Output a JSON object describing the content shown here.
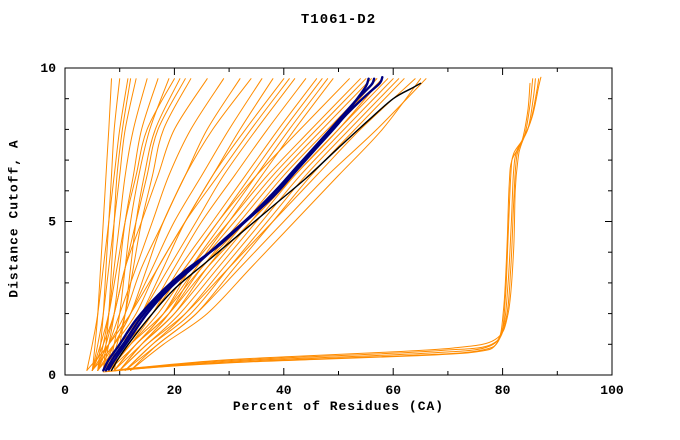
{
  "chart_data": {
    "type": "line",
    "title": "T1061-D2",
    "xlabel": "Percent of Residues (CA)",
    "ylabel": "Distance Cutoff, A",
    "xlim": [
      0,
      100
    ],
    "ylim": [
      0,
      10
    ],
    "xticks_major": [
      0,
      20,
      40,
      60,
      80,
      100
    ],
    "xtick_minor_step": 10,
    "yticks_major": [
      0,
      5,
      10
    ],
    "ytick_minor_step": 1,
    "legend": "none",
    "grid": false,
    "styles": {
      "model": {
        "color": "#ff8c00",
        "width": 1
      },
      "reference": {
        "color": "#000080",
        "width": 2.4
      },
      "baseline": {
        "color": "#000000",
        "width": 1.4
      },
      "axis_color": "#000000",
      "background": "#ffffff"
    },
    "model_ylevels": [
      0.15,
      1,
      2,
      3.5,
      5,
      6.5,
      8,
      9.65
    ],
    "model_curves_x": [
      [
        5,
        5.5,
        6,
        6.5,
        7,
        7.5,
        8,
        8.5
      ],
      [
        6,
        6.5,
        7,
        7.5,
        8,
        8.5,
        9,
        10
      ],
      [
        7,
        7.5,
        8,
        8.5,
        9,
        9.5,
        10.5,
        12
      ],
      [
        5,
        6,
        7,
        8,
        9,
        10,
        11,
        13
      ],
      [
        6,
        7,
        8,
        9,
        10,
        11,
        12.5,
        15
      ],
      [
        7,
        8,
        9,
        10,
        11,
        12.5,
        14,
        17
      ],
      [
        8,
        9,
        10,
        11,
        12,
        13.5,
        15.5,
        19
      ],
      [
        5,
        6.5,
        8,
        9.5,
        11,
        13,
        15,
        20
      ],
      [
        6,
        7.5,
        9,
        11,
        13,
        15,
        17,
        22
      ],
      [
        9,
        10,
        11,
        12,
        13,
        14.5,
        16.5,
        21
      ],
      [
        4,
        5,
        6,
        7,
        8,
        9,
        10,
        11.5
      ],
      [
        8,
        9.5,
        11,
        12.5,
        14,
        16,
        18,
        23
      ],
      [
        5,
        7,
        9,
        11,
        14,
        17,
        20,
        26
      ],
      [
        6,
        8,
        10,
        13,
        16,
        19,
        23,
        29
      ],
      [
        7,
        9,
        12,
        15,
        18,
        22,
        26,
        32
      ],
      [
        5,
        8,
        11,
        14,
        18,
        22,
        27,
        34
      ],
      [
        6,
        9,
        12,
        16,
        20,
        25,
        30,
        36
      ],
      [
        8,
        11,
        14,
        18,
        22,
        27,
        32,
        38
      ],
      [
        5,
        9,
        13,
        17,
        22,
        27,
        33,
        40
      ],
      [
        7,
        10,
        14,
        19,
        24,
        29,
        35,
        42
      ],
      [
        6,
        10,
        15,
        20,
        25,
        31,
        37,
        44
      ],
      [
        8,
        12,
        16,
        21,
        27,
        33,
        39,
        46
      ],
      [
        9,
        13,
        18,
        23,
        29,
        35,
        41,
        48
      ],
      [
        4,
        8,
        12,
        17,
        22,
        28,
        34,
        41
      ],
      [
        10,
        14,
        19,
        24,
        30,
        36,
        42,
        49
      ],
      [
        7,
        11,
        16,
        22,
        28,
        34,
        40,
        47
      ],
      [
        7,
        11,
        16,
        22,
        28,
        35,
        43,
        52
      ],
      [
        8,
        12,
        17,
        23,
        30,
        37,
        45,
        54
      ],
      [
        8,
        13,
        18,
        24,
        31,
        38,
        46,
        55
      ],
      [
        9,
        13,
        19,
        25,
        32,
        39,
        47,
        56
      ],
      [
        9,
        14,
        20,
        26,
        33,
        40,
        48,
        57
      ],
      [
        10,
        14,
        20,
        27,
        34,
        41,
        49,
        58
      ],
      [
        10,
        15,
        21,
        28,
        35,
        42,
        50,
        59
      ],
      [
        11,
        16,
        22,
        29,
        36,
        43,
        51,
        60
      ],
      [
        11,
        16,
        23,
        30,
        37,
        44,
        52,
        61
      ],
      [
        12,
        17,
        24,
        31,
        38,
        45,
        53,
        62
      ],
      [
        8,
        12,
        18,
        25,
        33,
        41,
        49,
        57
      ],
      [
        9,
        13,
        19,
        26,
        34,
        42,
        50,
        58
      ],
      [
        10,
        15,
        22,
        30,
        38,
        46,
        54,
        64
      ],
      [
        11,
        17,
        24,
        32,
        40,
        48,
        57,
        66
      ],
      [
        12,
        18,
        26,
        34,
        42,
        50,
        58,
        65
      ]
    ],
    "model_outlier_curves": [
      [
        [
          8,
          0.12
        ],
        [
          20,
          0.3
        ],
        [
          35,
          0.45
        ],
        [
          50,
          0.55
        ],
        [
          65,
          0.65
        ],
        [
          76,
          0.8
        ],
        [
          79.5,
          1.2
        ],
        [
          80.5,
          2.5
        ],
        [
          81,
          4.5
        ],
        [
          81.5,
          6.5
        ],
        [
          82,
          7.2
        ],
        [
          84,
          7.8
        ],
        [
          85,
          8.8
        ],
        [
          85.5,
          9.65
        ]
      ],
      [
        [
          9,
          0.15
        ],
        [
          22,
          0.35
        ],
        [
          37,
          0.5
        ],
        [
          52,
          0.6
        ],
        [
          67,
          0.72
        ],
        [
          77,
          0.9
        ],
        [
          80,
          1.5
        ],
        [
          81,
          3
        ],
        [
          81.6,
          5
        ],
        [
          82,
          6.6
        ],
        [
          82.6,
          7.3
        ],
        [
          84.6,
          8.0
        ],
        [
          85.6,
          9.0
        ],
        [
          86,
          9.65
        ]
      ],
      [
        [
          10,
          0.18
        ],
        [
          24,
          0.4
        ],
        [
          39,
          0.55
        ],
        [
          54,
          0.66
        ],
        [
          69,
          0.8
        ],
        [
          78,
          1.0
        ],
        [
          80.6,
          1.8
        ],
        [
          81.5,
          3.5
        ],
        [
          82,
          5.5
        ],
        [
          82.4,
          6.8
        ],
        [
          83,
          7.4
        ],
        [
          85,
          8.2
        ],
        [
          86.2,
          9.2
        ],
        [
          86.6,
          9.65
        ]
      ],
      [
        [
          7,
          0.1
        ],
        [
          18,
          0.27
        ],
        [
          33,
          0.42
        ],
        [
          48,
          0.52
        ],
        [
          63,
          0.62
        ],
        [
          75,
          0.75
        ],
        [
          79,
          1.05
        ],
        [
          80.2,
          2.2
        ],
        [
          80.8,
          4.2
        ],
        [
          81.2,
          6.2
        ],
        [
          81.7,
          7.0
        ],
        [
          83.5,
          7.6
        ],
        [
          84.6,
          8.6
        ],
        [
          85,
          9.5
        ]
      ],
      [
        [
          11,
          0.2
        ],
        [
          26,
          0.45
        ],
        [
          41,
          0.6
        ],
        [
          56,
          0.72
        ],
        [
          71,
          0.88
        ],
        [
          78.6,
          1.15
        ],
        [
          81,
          2.0
        ],
        [
          82,
          4.0
        ],
        [
          82.3,
          6.0
        ],
        [
          82.8,
          7.0
        ],
        [
          83.4,
          7.5
        ],
        [
          85.4,
          8.4
        ],
        [
          86.6,
          9.4
        ],
        [
          87,
          9.7
        ]
      ]
    ],
    "reference_curves": [
      [
        [
          7,
          0.15
        ],
        [
          8,
          0.5
        ],
        [
          10,
          1.0
        ],
        [
          13,
          1.8
        ],
        [
          17,
          2.6
        ],
        [
          22,
          3.4
        ],
        [
          28,
          4.2
        ],
        [
          33,
          5.0
        ],
        [
          38,
          5.8
        ],
        [
          42,
          6.6
        ],
        [
          46,
          7.4
        ],
        [
          50,
          8.2
        ],
        [
          53,
          8.9
        ],
        [
          55,
          9.4
        ],
        [
          55.5,
          9.65
        ]
      ],
      [
        [
          7.5,
          0.15
        ],
        [
          8.8,
          0.55
        ],
        [
          10.8,
          1.05
        ],
        [
          14,
          1.9
        ],
        [
          18,
          2.7
        ],
        [
          23,
          3.5
        ],
        [
          28.5,
          4.3
        ],
        [
          33.5,
          5.1
        ],
        [
          38.5,
          6.0
        ],
        [
          42.5,
          6.8
        ],
        [
          46.5,
          7.6
        ],
        [
          50.5,
          8.4
        ],
        [
          53.5,
          9.0
        ],
        [
          56,
          9.45
        ],
        [
          56.5,
          9.65
        ]
      ],
      [
        [
          8,
          0.18
        ],
        [
          9.5,
          0.6
        ],
        [
          11.5,
          1.1
        ],
        [
          15,
          2.0
        ],
        [
          19,
          2.8
        ],
        [
          24,
          3.6
        ],
        [
          29,
          4.4
        ],
        [
          34,
          5.2
        ],
        [
          39,
          6.1
        ],
        [
          43,
          6.9
        ],
        [
          47.5,
          7.7
        ],
        [
          51.5,
          8.5
        ],
        [
          55,
          9.1
        ],
        [
          57.5,
          9.5
        ],
        [
          58,
          9.7
        ]
      ]
    ],
    "baseline_curves": [
      [
        [
          8.5,
          0.15
        ],
        [
          10,
          0.6
        ],
        [
          12,
          1.1
        ],
        [
          15.5,
          1.9
        ],
        [
          20,
          2.8
        ],
        [
          26,
          3.7
        ],
        [
          32,
          4.6
        ],
        [
          38,
          5.5
        ],
        [
          44,
          6.4
        ],
        [
          50,
          7.4
        ],
        [
          55.5,
          8.3
        ],
        [
          60,
          9.0
        ],
        [
          63.5,
          9.35
        ],
        [
          65,
          9.5
        ]
      ]
    ]
  }
}
